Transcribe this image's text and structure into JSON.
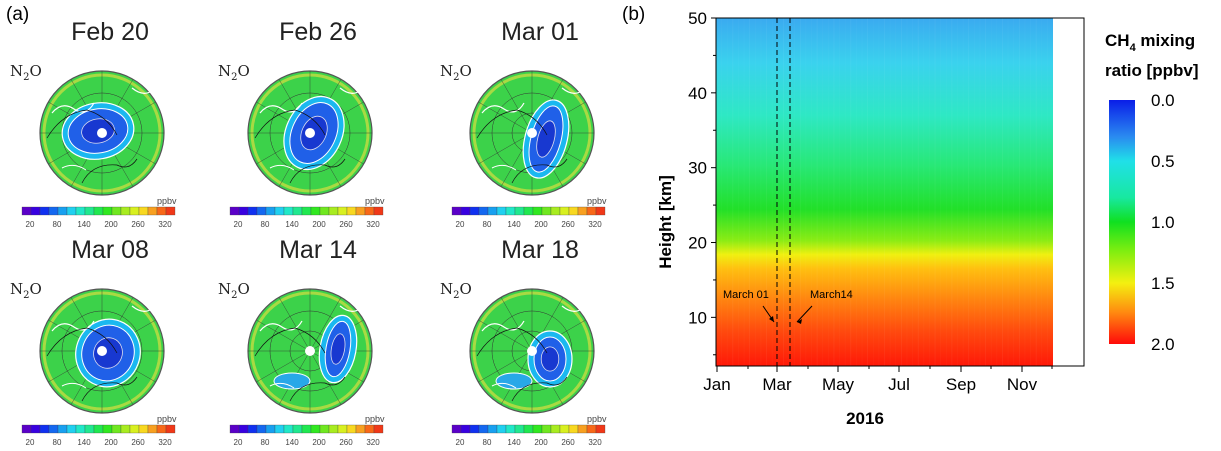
{
  "panel_a": {
    "label": "(a)",
    "species_label": "N",
    "species_sub": "2",
    "species_suffix": "O",
    "unit": "ppbv",
    "colorbar_ticks": [
      "20",
      "80",
      "140",
      "200",
      "260",
      "320"
    ],
    "maps": [
      {
        "date": "Feb 20"
      },
      {
        "date": "Feb 26"
      },
      {
        "date": "Mar 01"
      },
      {
        "date": "Mar 08"
      },
      {
        "date": "Mar 14"
      },
      {
        "date": "Mar 18"
      }
    ]
  },
  "panel_b": {
    "label": "(b)"
  },
  "chart_data": {
    "type": "heatmap",
    "xlabel": "2016",
    "ylabel": "Height [km]",
    "x_ticks": [
      "Jan",
      "Mar",
      "May",
      "Jul",
      "Sep",
      "Nov"
    ],
    "y_ticks": [
      10,
      20,
      30,
      40,
      50
    ],
    "ylim": [
      3.5,
      50
    ],
    "colorbar": {
      "title_main": "CH",
      "title_sub": "4",
      "title_rest": " mixing",
      "title_line2": "ratio [ppbv]",
      "ticks": [
        "0.0",
        "0.5",
        "1.0",
        "1.5",
        "2.0"
      ],
      "range": [
        0.0,
        2.0
      ]
    },
    "annotations": [
      {
        "text": "March 01",
        "x": "2016-03-01"
      },
      {
        "text": "March14",
        "x": "2016-03-14"
      }
    ],
    "vertical_lines": [
      "2016-03-01",
      "2016-03-14"
    ],
    "profile": [
      {
        "height": 5,
        "value": 1.95
      },
      {
        "height": 10,
        "value": 1.85
      },
      {
        "height": 15,
        "value": 1.7
      },
      {
        "height": 18,
        "value": 1.6
      },
      {
        "height": 20,
        "value": 1.45
      },
      {
        "height": 25,
        "value": 1.15
      },
      {
        "height": 30,
        "value": 1.0
      },
      {
        "height": 35,
        "value": 0.85
      },
      {
        "height": 40,
        "value": 0.7
      },
      {
        "height": 45,
        "value": 0.55
      },
      {
        "height": 50,
        "value": 0.45
      }
    ]
  }
}
